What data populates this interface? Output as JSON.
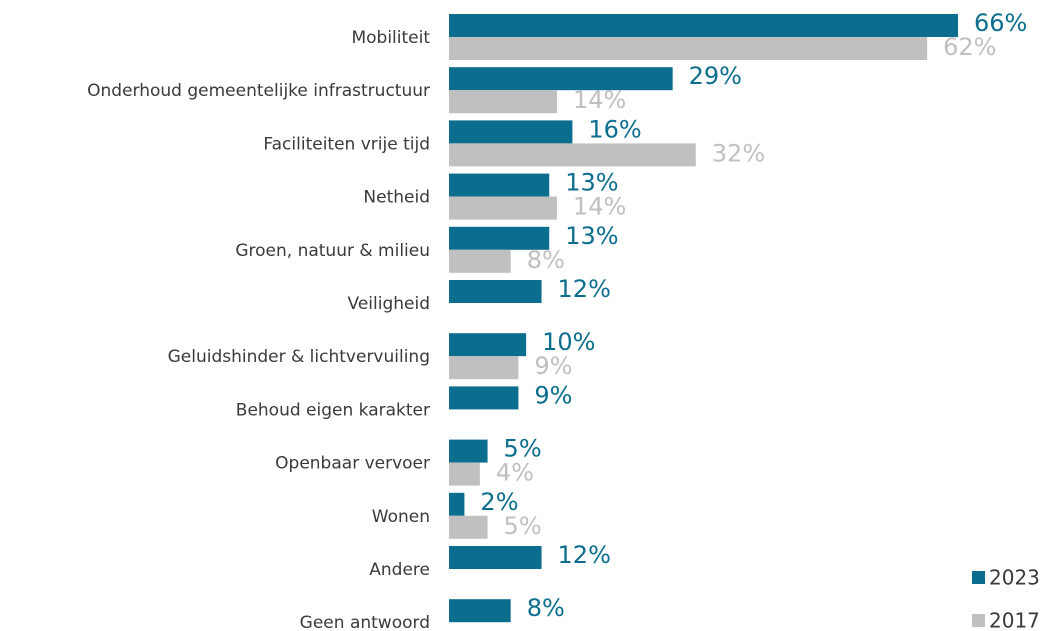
{
  "chart_data": {
    "type": "bar",
    "orientation": "horizontal",
    "categories": [
      "Mobiliteit",
      "Onderhoud gemeentelijke infrastructuur",
      "Faciliteiten vrije tijd",
      "Netheid",
      "Groen, natuur & milieu",
      "Veiligheid",
      "Geluidshinder & lichtvervuiling",
      "Behoud eigen karakter",
      "Openbaar vervoer",
      "Wonen",
      "Andere",
      "Geen antwoord"
    ],
    "series": [
      {
        "name": "2023",
        "color": "#0b6e8e",
        "values": [
          66,
          29,
          16,
          13,
          13,
          12,
          10,
          9,
          5,
          2,
          12,
          8
        ],
        "value_labels": [
          "66%",
          "29%",
          "16%",
          "13%",
          "13%",
          "12%",
          "10%",
          "9%",
          "5%",
          "2%",
          "12%",
          "8%"
        ]
      },
      {
        "name": "2017",
        "color": "#c0c0c0",
        "values": [
          62,
          14,
          32,
          14,
          8,
          null,
          9,
          null,
          4,
          5,
          null,
          null
        ],
        "value_labels": [
          "62%",
          "14%",
          "32%",
          "14%",
          "8%",
          null,
          "9%",
          null,
          "4%",
          "5%",
          null,
          null
        ]
      }
    ],
    "legend": "bottom-right"
  }
}
